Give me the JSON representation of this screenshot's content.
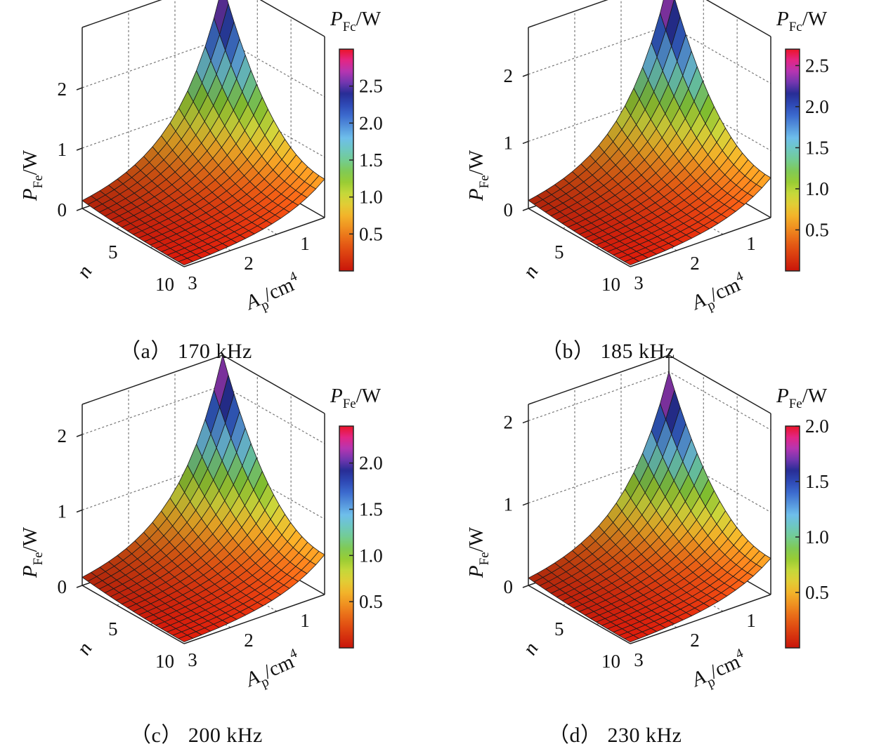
{
  "chart_data": [
    {
      "type": "surface3d",
      "caption": "（a） 170 kHz",
      "frequency": "170 kHz",
      "zlabel": "P_Fe/W",
      "xlabel": "A_p/cm^4",
      "ylabel": "n",
      "x_ticks": [
        "1",
        "2",
        "3"
      ],
      "y_ticks": [
        "5",
        "10"
      ],
      "z_ticks": [
        "0",
        "1",
        "2"
      ],
      "xlim": [
        0.5,
        3
      ],
      "ylim": [
        1,
        10
      ],
      "zlim": [
        0,
        3
      ],
      "z_max": 2.9,
      "colorbar_title": "P_Fc/W",
      "colorbar_ticks": [
        "0.5",
        "1.0",
        "1.5",
        "2.0",
        "2.5"
      ],
      "colorbar_range": [
        0,
        3.0
      ]
    },
    {
      "type": "surface3d",
      "caption": "（b） 185 kHz",
      "frequency": "185 kHz",
      "zlabel": "P_Fe/W",
      "xlabel": "A_p/cm^4",
      "ylabel": "n",
      "x_ticks": [
        "1",
        "2",
        "3"
      ],
      "y_ticks": [
        "5",
        "10"
      ],
      "z_ticks": [
        "0",
        "1",
        "2"
      ],
      "xlim": [
        0.5,
        3
      ],
      "ylim": [
        1,
        10
      ],
      "zlim": [
        0,
        2.7
      ],
      "z_max": 2.7,
      "colorbar_title": "P_Fc/W",
      "colorbar_ticks": [
        "0.5",
        "1.0",
        "1.5",
        "2.0",
        "2.5"
      ],
      "colorbar_range": [
        0,
        2.7
      ]
    },
    {
      "type": "surface3d",
      "caption": "（c） 200 kHz",
      "frequency": "200 kHz",
      "zlabel": "P_Fe/W",
      "xlabel": "A_p/cm^4",
      "ylabel": "n",
      "x_ticks": [
        "1",
        "2",
        "3"
      ],
      "y_ticks": [
        "5",
        "10"
      ],
      "z_ticks": [
        "0",
        "1",
        "2"
      ],
      "xlim": [
        0.5,
        3
      ],
      "ylim": [
        1,
        10
      ],
      "zlim": [
        0,
        2.4
      ],
      "z_max": 2.4,
      "colorbar_title": "P_Fe/W",
      "colorbar_ticks": [
        "0.5",
        "1.0",
        "1.5",
        "2.0"
      ],
      "colorbar_range": [
        0,
        2.4
      ]
    },
    {
      "type": "surface3d",
      "caption": "（d） 230 kHz",
      "frequency": "230 kHz",
      "zlabel": "P_Fe/W",
      "xlabel": "A_p/cm^4",
      "ylabel": "n",
      "x_ticks": [
        "1",
        "2",
        "3"
      ],
      "y_ticks": [
        "5",
        "10"
      ],
      "z_ticks": [
        "0",
        "1",
        "2"
      ],
      "xlim": [
        0.5,
        3
      ],
      "ylim": [
        1,
        10
      ],
      "zlim": [
        0,
        2.2
      ],
      "z_max": 2.0,
      "colorbar_title": "P_Fe/W",
      "colorbar_ticks": [
        "0.5",
        "1.0",
        "1.5",
        "2.0"
      ],
      "colorbar_range": [
        0,
        2.0
      ]
    }
  ]
}
